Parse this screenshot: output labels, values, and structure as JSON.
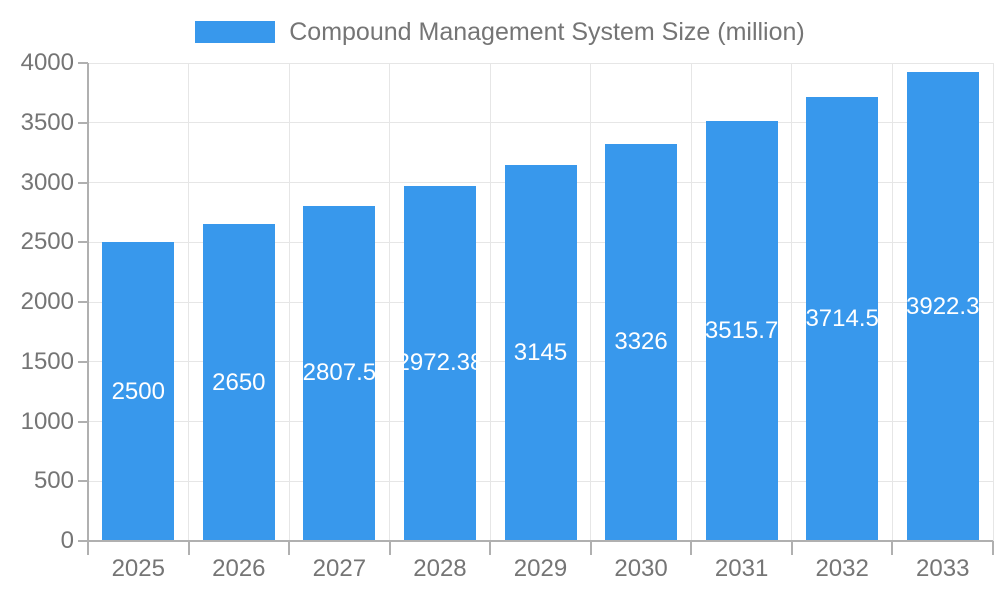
{
  "chart_data": {
    "type": "bar",
    "title": "Compound Management System Size (million)",
    "categories": [
      "2025",
      "2026",
      "2027",
      "2028",
      "2029",
      "2030",
      "2031",
      "2032",
      "2033"
    ],
    "values": [
      2500,
      2650,
      2807.5,
      2972.38,
      3145,
      3326,
      3515.7,
      3714.5,
      3922.3
    ],
    "value_labels": [
      "2500",
      "2650",
      "2807.5",
      "2972.38",
      "3145",
      "3326",
      "3515.7",
      "3714.5",
      "3922.3"
    ],
    "xlabel": "",
    "ylabel": "",
    "ylim": [
      0,
      4000
    ],
    "y_ticks": [
      0,
      500,
      1000,
      1500,
      2000,
      2500,
      3000,
      3500,
      4000
    ],
    "grid": true,
    "legend_position": "top-center",
    "legend_entries": [
      "Compound Management System Size (million)"
    ],
    "colors": {
      "bar": "#3898EC",
      "bar_label_text": "#FFFFFF",
      "axis_text": "#757575",
      "legend_text": "#757575",
      "axis_line": "#B0B0B0",
      "gridline": "#E6E6E6",
      "background": "#FFFFFF"
    }
  }
}
